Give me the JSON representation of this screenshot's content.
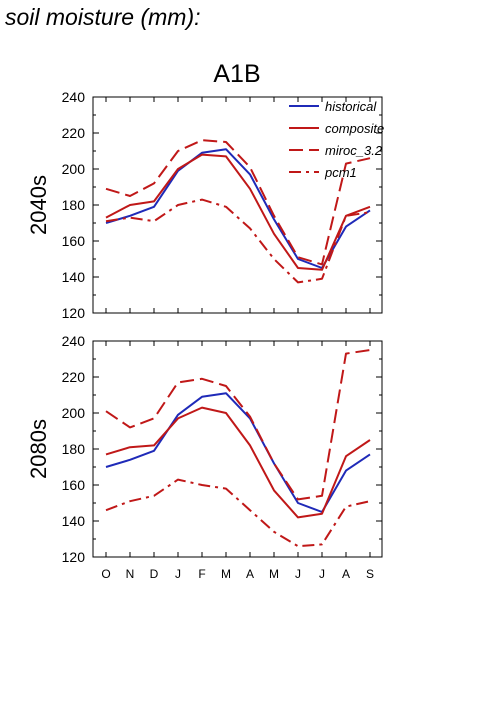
{
  "page": {
    "heading": "soil moisture (mm):"
  },
  "chart_data": {
    "type": "line",
    "title": "A1B",
    "categories": [
      "O",
      "N",
      "D",
      "J",
      "F",
      "M",
      "A",
      "M",
      "J",
      "J",
      "A",
      "S"
    ],
    "colors": {
      "historical": "#1f2ab8",
      "scenario": "#c01818"
    },
    "legend": {
      "placement": "top-right",
      "entries": [
        {
          "name": "historical",
          "style": "solid",
          "color": "#1f2ab8"
        },
        {
          "name": "composite",
          "style": "solid",
          "color": "#c01818"
        },
        {
          "name": "miroc_3.2",
          "style": "dashed",
          "color": "#c01818"
        },
        {
          "name": "pcm1",
          "style": "dashdot",
          "color": "#c01818"
        }
      ]
    },
    "panels": [
      {
        "ylabel": "2040s",
        "ylim": [
          120,
          240
        ],
        "yticks": [
          120,
          140,
          160,
          180,
          200,
          220,
          240
        ],
        "series": [
          {
            "name": "historical",
            "style": "solid",
            "color": "#1f2ab8",
            "values": [
              170,
              174,
              179,
              199,
              209,
              211,
              197,
              172,
              150,
              145,
              168,
              177
            ]
          },
          {
            "name": "composite",
            "style": "solid",
            "color": "#c01818",
            "values": [
              173,
              180,
              182,
              200,
              208,
              207,
              189,
              164,
              145,
              144,
              174,
              179
            ]
          },
          {
            "name": "miroc_3.2",
            "style": "dashed",
            "color": "#c01818",
            "values": [
              189,
              185,
              192,
              210,
              216,
              215,
              201,
              174,
              151,
              147,
              203,
              206
            ]
          },
          {
            "name": "pcm1",
            "style": "dashdot",
            "color": "#c01818",
            "values": [
              171,
              173,
              171,
              180,
              183,
              179,
              167,
              150,
              137,
              139,
              174,
              176
            ]
          }
        ]
      },
      {
        "ylabel": "2080s",
        "ylim": [
          120,
          240
        ],
        "yticks": [
          120,
          140,
          160,
          180,
          200,
          220,
          240
        ],
        "series": [
          {
            "name": "historical",
            "style": "solid",
            "color": "#1f2ab8",
            "values": [
              170,
              174,
              179,
              199,
              209,
              211,
              197,
              172,
              150,
              145,
              168,
              177
            ]
          },
          {
            "name": "composite",
            "style": "solid",
            "color": "#c01818",
            "values": [
              177,
              181,
              182,
              197,
              203,
              200,
              182,
              157,
              142,
              144,
              176,
              185
            ]
          },
          {
            "name": "miroc_3.2",
            "style": "dashed",
            "color": "#c01818",
            "values": [
              201,
              192,
              197,
              217,
              219,
              215,
              198,
              172,
              152,
              154,
              233,
              235
            ]
          },
          {
            "name": "pcm1",
            "style": "dashdot",
            "color": "#c01818",
            "values": [
              146,
              151,
              154,
              163,
              160,
              158,
              146,
              134,
              126,
              127,
              148,
              151
            ]
          }
        ]
      }
    ]
  }
}
